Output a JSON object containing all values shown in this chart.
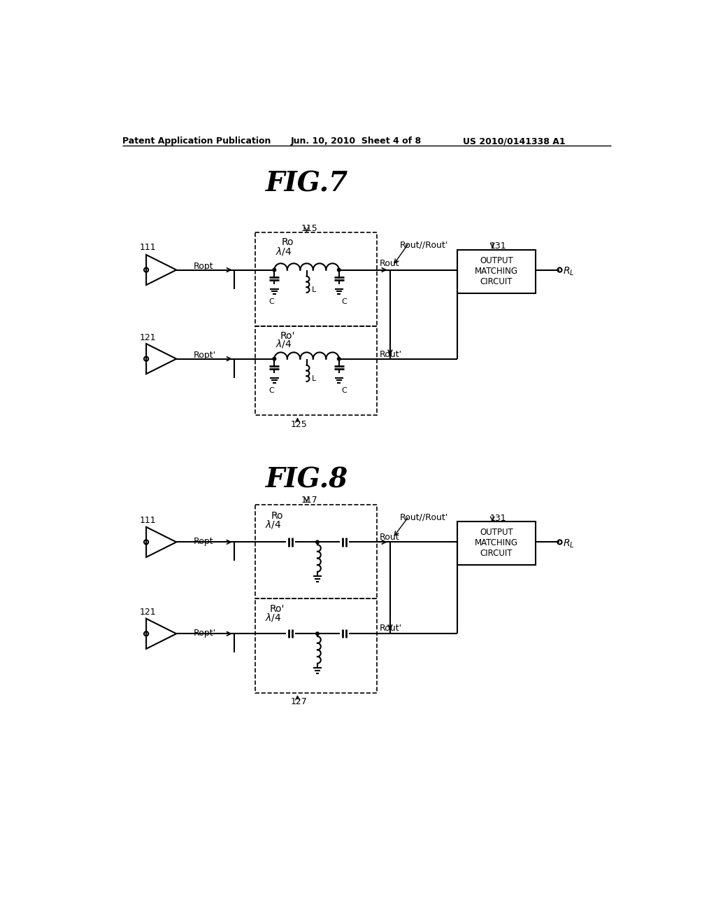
{
  "bg_color": "#ffffff",
  "header_left": "Patent Application Publication",
  "header_mid": "Jun. 10, 2010  Sheet 4 of 8",
  "header_right": "US 2010/0141338 A1",
  "fig7_title": "FIG.7",
  "fig8_title": "FIG.8"
}
